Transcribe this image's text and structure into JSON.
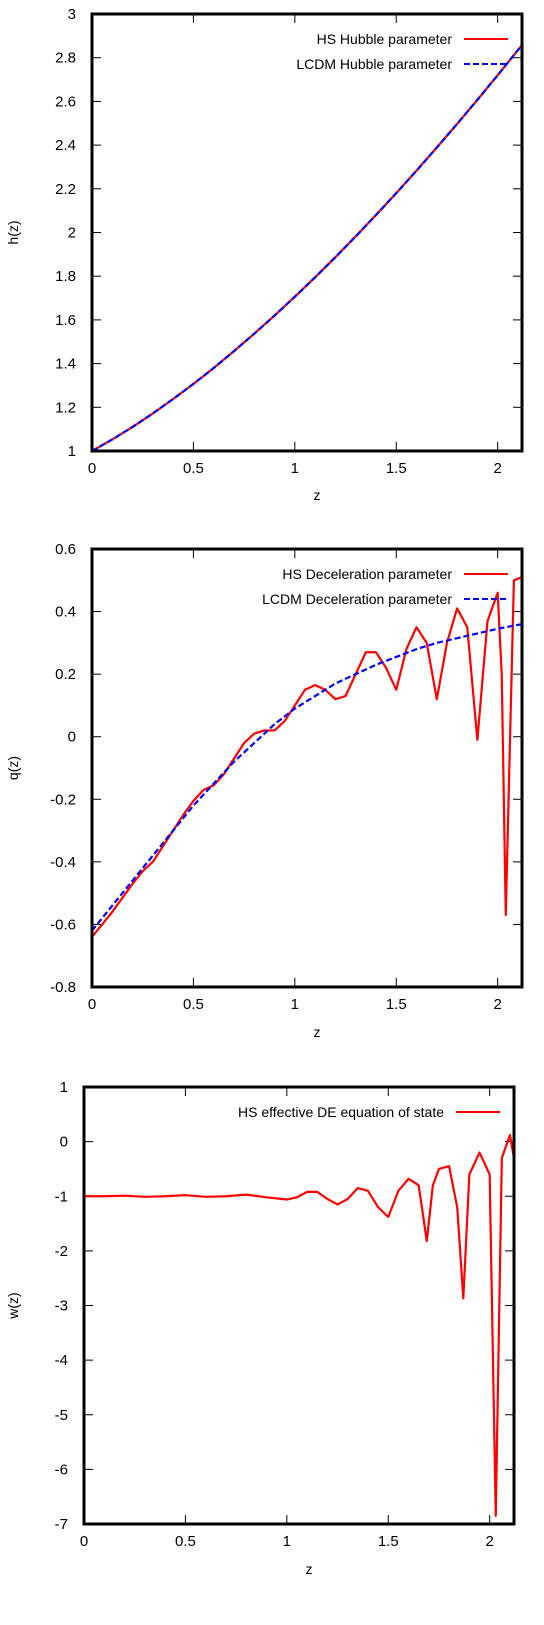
{
  "chart_data": [
    {
      "type": "line",
      "xlabel": "z",
      "ylabel": "h(z)",
      "xlim": [
        0,
        2.12
      ],
      "ylim": [
        1,
        3
      ],
      "xticks": [
        0,
        0.5,
        1,
        1.5,
        2
      ],
      "xtick_labels": [
        "0",
        "0.5",
        "1",
        "1.5",
        "2"
      ],
      "yticks": [
        1,
        1.2,
        1.4,
        1.6,
        1.8,
        2,
        2.2,
        2.4,
        2.6,
        2.8,
        3
      ],
      "ytick_labels": [
        "1",
        "1.2",
        "1.4",
        "1.6",
        "1.8",
        "2",
        "2.2",
        "2.4",
        "2.6",
        "2.8",
        "3"
      ],
      "legend_position": "top-right",
      "series": [
        {
          "name": "HS Hubble parameter",
          "color": "#ff0000",
          "dash": "solid",
          "x": [
            0,
            0.1,
            0.2,
            0.3,
            0.4,
            0.5,
            0.6,
            0.7,
            0.8,
            0.9,
            1.0,
            1.1,
            1.2,
            1.3,
            1.4,
            1.5,
            1.6,
            1.7,
            1.8,
            1.9,
            2.0,
            2.12
          ],
          "y": [
            1.0,
            1.053,
            1.11,
            1.172,
            1.238,
            1.307,
            1.38,
            1.457,
            1.537,
            1.62,
            1.706,
            1.795,
            1.887,
            1.982,
            2.08,
            2.18,
            2.283,
            2.389,
            2.497,
            2.607,
            2.72,
            2.858
          ]
        },
        {
          "name": "LCDM Hubble  parameter",
          "color": "#0000ff",
          "dash": "dashed",
          "x": [
            0,
            0.1,
            0.2,
            0.3,
            0.4,
            0.5,
            0.6,
            0.7,
            0.8,
            0.9,
            1.0,
            1.1,
            1.2,
            1.3,
            1.4,
            1.5,
            1.6,
            1.7,
            1.8,
            1.9,
            2.0,
            2.12
          ],
          "y": [
            1.0,
            1.053,
            1.11,
            1.172,
            1.238,
            1.307,
            1.38,
            1.457,
            1.537,
            1.62,
            1.706,
            1.795,
            1.887,
            1.982,
            2.08,
            2.18,
            2.283,
            2.389,
            2.497,
            2.607,
            2.72,
            2.858
          ]
        }
      ]
    },
    {
      "type": "line",
      "xlabel": "z",
      "ylabel": "q(z)",
      "xlim": [
        0,
        2.12
      ],
      "ylim": [
        -0.8,
        0.6
      ],
      "xticks": [
        0,
        0.5,
        1,
        1.5,
        2
      ],
      "xtick_labels": [
        "0",
        "0.5",
        "1",
        "1.5",
        "2"
      ],
      "yticks": [
        -0.8,
        -0.6,
        -0.4,
        -0.2,
        0,
        0.2,
        0.4,
        0.6
      ],
      "ytick_labels": [
        "-0.8",
        "-0.6",
        "-0.4",
        "-0.2",
        "0",
        "0.2",
        "0.4",
        "0.6"
      ],
      "legend_position": "top-right",
      "series": [
        {
          "name": "HS Deceleration parameter",
          "color": "#ff0000",
          "dash": "solid",
          "x": [
            0,
            0.1,
            0.2,
            0.25,
            0.3,
            0.35,
            0.4,
            0.45,
            0.5,
            0.55,
            0.6,
            0.65,
            0.7,
            0.75,
            0.8,
            0.85,
            0.9,
            0.95,
            1.0,
            1.05,
            1.1,
            1.15,
            1.2,
            1.25,
            1.3,
            1.35,
            1.4,
            1.45,
            1.5,
            1.55,
            1.6,
            1.65,
            1.7,
            1.75,
            1.8,
            1.85,
            1.9,
            1.95,
            2.0,
            2.02,
            2.04,
            2.08,
            2.12
          ],
          "y": [
            -0.64,
            -0.56,
            -0.47,
            -0.43,
            -0.4,
            -0.35,
            -0.3,
            -0.25,
            -0.205,
            -0.17,
            -0.155,
            -0.12,
            -0.07,
            -0.02,
            0.01,
            0.02,
            0.02,
            0.05,
            0.1,
            0.15,
            0.165,
            0.15,
            0.12,
            0.13,
            0.2,
            0.27,
            0.27,
            0.22,
            0.15,
            0.28,
            0.35,
            0.3,
            0.12,
            0.3,
            0.41,
            0.35,
            -0.01,
            0.37,
            0.46,
            0.2,
            -0.57,
            0.5,
            0.51
          ]
        },
        {
          "name": "LCDM Deceleration parameter",
          "color": "#0000ff",
          "dash": "dashed",
          "x": [
            0,
            0.1,
            0.2,
            0.3,
            0.4,
            0.5,
            0.6,
            0.7,
            0.8,
            0.9,
            1.0,
            1.1,
            1.2,
            1.3,
            1.4,
            1.5,
            1.6,
            1.7,
            1.8,
            1.9,
            2.0,
            2.12
          ],
          "y": [
            -0.62,
            -0.54,
            -0.46,
            -0.38,
            -0.3,
            -0.22,
            -0.15,
            -0.08,
            -0.02,
            0.04,
            0.09,
            0.13,
            0.17,
            0.2,
            0.23,
            0.255,
            0.28,
            0.3,
            0.315,
            0.33,
            0.345,
            0.36
          ]
        }
      ]
    },
    {
      "type": "line",
      "xlabel": "z",
      "ylabel": "w(z)",
      "xlim": [
        0,
        2.12
      ],
      "ylim": [
        -7,
        1
      ],
      "xticks": [
        0,
        0.5,
        1,
        1.5,
        2
      ],
      "xtick_labels": [
        "0",
        "0.5",
        "1",
        "1.5",
        "2"
      ],
      "yticks": [
        -7,
        -6,
        -5,
        -4,
        -3,
        -2,
        -1,
        0,
        1
      ],
      "ytick_labels": [
        "-7",
        "-6",
        "-5",
        "-4",
        "-3",
        "-2",
        "-1",
        "0",
        "1"
      ],
      "legend_position": "top-right",
      "series": [
        {
          "name": "HS effective DE equation of state",
          "color": "#ff0000",
          "dash": "solid",
          "x": [
            0,
            0.1,
            0.2,
            0.3,
            0.4,
            0.5,
            0.6,
            0.7,
            0.8,
            0.9,
            1.0,
            1.05,
            1.1,
            1.15,
            1.2,
            1.25,
            1.3,
            1.35,
            1.4,
            1.45,
            1.5,
            1.55,
            1.6,
            1.65,
            1.69,
            1.72,
            1.75,
            1.8,
            1.84,
            1.87,
            1.9,
            1.95,
            2.0,
            2.03,
            2.06,
            2.1,
            2.12
          ],
          "y": [
            -1.0,
            -1.0,
            -0.99,
            -1.01,
            -1.0,
            -0.98,
            -1.01,
            -1.0,
            -0.97,
            -1.02,
            -1.06,
            -1.02,
            -0.92,
            -0.92,
            -1.05,
            -1.15,
            -1.05,
            -0.85,
            -0.9,
            -1.2,
            -1.38,
            -0.9,
            -0.68,
            -0.8,
            -1.82,
            -0.8,
            -0.5,
            -0.45,
            -1.2,
            -2.87,
            -0.6,
            -0.2,
            -0.6,
            -6.85,
            -0.3,
            0.12,
            -0.3
          ]
        }
      ]
    }
  ]
}
